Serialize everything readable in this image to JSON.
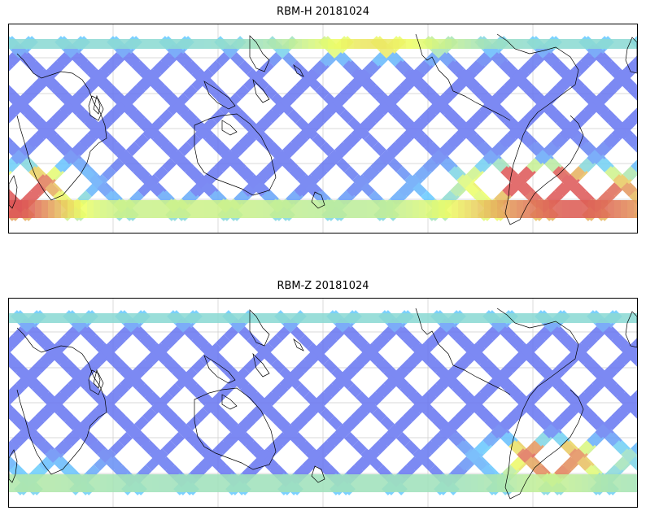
{
  "panels": [
    {
      "title": "RBM-H 20181024",
      "hot_zones": [
        {
          "lon": 0.0,
          "lat": -0.75,
          "strength": 0.95,
          "spread_lon": 0.07,
          "spread_lat": 0.18
        },
        {
          "lon": 0.05,
          "lat": -0.55,
          "strength": 0.45,
          "spread_lon": 0.05,
          "spread_lat": 0.12
        },
        {
          "lon": 0.9,
          "lat": -0.72,
          "strength": 1.0,
          "spread_lon": 0.14,
          "spread_lat": 0.2
        },
        {
          "lon": 0.82,
          "lat": -0.55,
          "strength": 0.7,
          "spread_lon": 0.06,
          "spread_lat": 0.1
        },
        {
          "lon": 0.58,
          "lat": 0.88,
          "strength": 0.55,
          "spread_lon": 0.1,
          "spread_lat": 0.08
        },
        {
          "lon": 0.3,
          "lat": -0.85,
          "strength": 0.4,
          "spread_lon": 0.2,
          "spread_lat": 0.06
        }
      ]
    },
    {
      "title": "RBM-Z 20181024",
      "hot_zones": [
        {
          "lon": 0.84,
          "lat": -0.55,
          "strength": 0.8,
          "spread_lon": 0.06,
          "spread_lat": 0.1
        },
        {
          "lon": 0.86,
          "lat": -0.78,
          "strength": 0.7,
          "spread_lon": 0.06,
          "spread_lat": 0.08
        },
        {
          "lon": 0.94,
          "lat": -0.62,
          "strength": 0.45,
          "spread_lon": 0.08,
          "spread_lat": 0.12
        },
        {
          "lon": 0.05,
          "lat": -0.75,
          "strength": 0.3,
          "spread_lon": 0.08,
          "spread_lat": 0.1
        }
      ]
    }
  ],
  "colors": {
    "low": "#6666ee",
    "mid": "#66ccff",
    "yellow": "#eeff66",
    "high": "#dd5555"
  }
}
